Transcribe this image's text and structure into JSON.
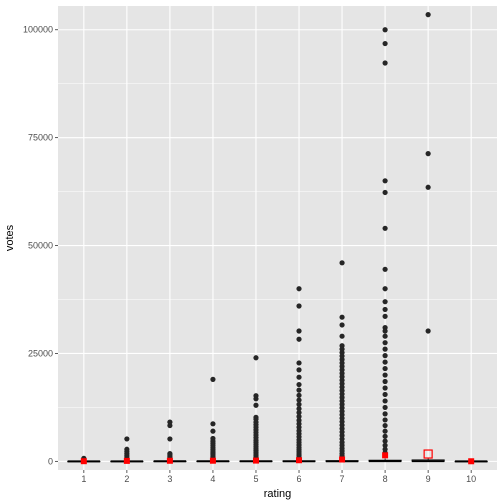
{
  "chart_data": {
    "type": "box",
    "xlabel": "rating",
    "ylabel": "votes",
    "categories": [
      "1",
      "2",
      "3",
      "4",
      "5",
      "6",
      "7",
      "8",
      "9",
      "10"
    ],
    "ylim": [
      -2000,
      105500
    ],
    "yticks": [
      0,
      25000,
      50000,
      75000,
      100000
    ],
    "ytick_labels": [
      "0",
      "25000",
      "50000",
      "75000",
      "100000"
    ],
    "grid": true,
    "colors": {
      "panel": "#e5e5e5",
      "grid": "#ffffff",
      "point": "#262626",
      "box": "#000000",
      "mean": "#ff0000"
    },
    "boxes": [
      {
        "category": "1",
        "q1": 5,
        "median": 10,
        "q3": 20,
        "whisker_low": 5,
        "whisker_high": 45,
        "mean": 40
      },
      {
        "category": "2",
        "q1": 5,
        "median": 12,
        "q3": 35,
        "whisker_low": 5,
        "whisker_high": 80,
        "mean": 110
      },
      {
        "category": "3",
        "q1": 6,
        "median": 15,
        "q3": 45,
        "whisker_low": 5,
        "whisker_high": 100,
        "mean": 140
      },
      {
        "category": "4",
        "q1": 6,
        "median": 18,
        "q3": 60,
        "whisker_low": 5,
        "whisker_high": 140,
        "mean": 150
      },
      {
        "category": "5",
        "q1": 7,
        "median": 22,
        "q3": 80,
        "whisker_low": 5,
        "whisker_high": 190,
        "mean": 180
      },
      {
        "category": "6",
        "q1": 8,
        "median": 30,
        "q3": 110,
        "whisker_low": 5,
        "whisker_high": 260,
        "mean": 260
      },
      {
        "category": "7",
        "q1": 10,
        "median": 40,
        "q3": 160,
        "whisker_low": 5,
        "whisker_high": 380,
        "mean": 430
      },
      {
        "category": "8",
        "q1": 12,
        "median": 60,
        "q3": 280,
        "whisker_low": 5,
        "whisker_high": 650,
        "mean": 1400
      },
      {
        "category": "9",
        "q1": 10,
        "median": 70,
        "q3": 350,
        "whisker_low": 5,
        "whisker_high": 800,
        "mean": 1700,
        "mean_hollow": true
      },
      {
        "category": "10",
        "q1": 5,
        "median": 8,
        "q3": 15,
        "whisker_low": 5,
        "whisker_high": 30,
        "mean": 25
      }
    ],
    "outliers": [
      {
        "category": "1",
        "values": [
          700,
          500
        ]
      },
      {
        "category": "2",
        "values": [
          5200,
          2800,
          2300,
          1800,
          1400,
          1000
        ]
      },
      {
        "category": "3",
        "values": [
          9100,
          8300,
          5200,
          1800,
          1500,
          1200,
          900
        ]
      },
      {
        "category": "4",
        "values": [
          19000,
          8700,
          7000,
          5300,
          4700,
          4200,
          3700,
          3200,
          2800,
          2400,
          2100,
          1800,
          1500,
          1200,
          900,
          700
        ]
      },
      {
        "category": "5",
        "values": [
          24000,
          15200,
          14500,
          13000,
          10200,
          9800,
          9100,
          8500,
          7900,
          7300,
          6700,
          6100,
          5500,
          4900,
          4400,
          3900,
          3400,
          2900,
          2500,
          2100,
          1700,
          1300,
          1000,
          800
        ]
      },
      {
        "category": "6",
        "values": [
          40000,
          36000,
          30200,
          28300,
          22800,
          21200,
          19500,
          17800,
          16500,
          15300,
          14200,
          13200,
          12200,
          11300,
          10400,
          9500,
          8700,
          7900,
          7100,
          6400,
          5700,
          5000,
          4400,
          3800,
          3200,
          2700,
          2200,
          1700,
          1300,
          900
        ]
      },
      {
        "category": "7",
        "values": [
          46000,
          33400,
          31600,
          29000,
          26800,
          26000,
          25200,
          24400,
          23600,
          22800,
          22000,
          21200,
          20400,
          19600,
          18800,
          18000,
          17200,
          16400,
          15600,
          14800,
          14000,
          13200,
          12400,
          11600,
          10800,
          10000,
          9200,
          8400,
          7600,
          6800,
          6000,
          5200,
          4400,
          3700,
          3000,
          2400,
          1800,
          1300,
          900
        ]
      },
      {
        "category": "8",
        "values": [
          100000,
          96800,
          92300,
          65000,
          62300,
          54000,
          44500,
          40000,
          37000,
          35200,
          33600,
          31000,
          30200,
          29000,
          27500,
          26000,
          24500,
          23000,
          21500,
          20000,
          18500,
          17000,
          15500,
          14000,
          12500,
          11000,
          9600,
          8300,
          7000,
          5800,
          4700,
          3700,
          2800,
          2000,
          1400
        ]
      },
      {
        "category": "9",
        "values": [
          103500,
          71300,
          63500,
          30200
        ]
      },
      {
        "category": "10",
        "values": []
      }
    ]
  }
}
